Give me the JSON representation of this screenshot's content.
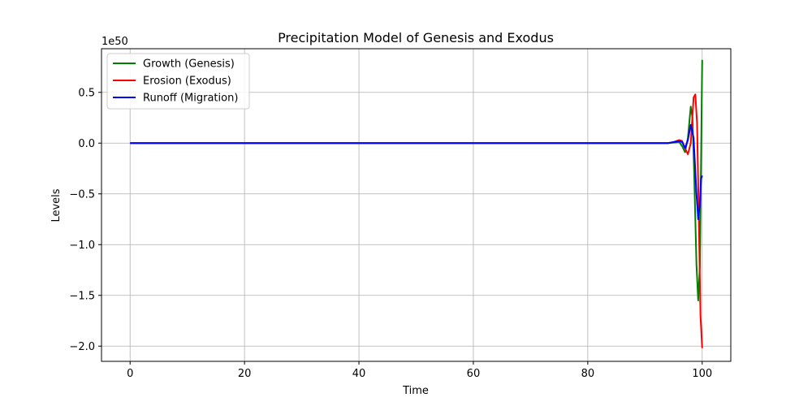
{
  "chart_data": {
    "type": "line",
    "title": "Precipitation Model of Genesis and Exodus",
    "xlabel": "Time",
    "ylabel": "Levels",
    "y_offset_label": "1e50",
    "xlim": [
      -5,
      105
    ],
    "ylim": [
      -2.15,
      0.93
    ],
    "x_ticks": [
      0,
      20,
      40,
      60,
      80,
      100
    ],
    "y_ticks": [
      0.5,
      0.0,
      -0.5,
      -1.0,
      -1.5,
      -2.0
    ],
    "x_tick_labels": [
      "0",
      "20",
      "40",
      "60",
      "80",
      "100"
    ],
    "y_tick_labels": [
      "0.5",
      "0.0",
      "−0.5",
      "−1.0",
      "−1.5",
      "−2.0"
    ],
    "grid": true,
    "legend_position": "upper-left",
    "series": [
      {
        "name": "Growth (Genesis)",
        "color": "#008000",
        "x": [
          0,
          90,
          94,
          95,
          96,
          96.5,
          97,
          97.5,
          98,
          98.3,
          98.6,
          99,
          99.3,
          99.6,
          100
        ],
        "y": [
          0,
          0,
          0,
          0.005,
          0.01,
          -0.03,
          -0.09,
          0.05,
          0.36,
          0.25,
          -0.3,
          -1.2,
          -1.55,
          -1.2,
          0.82
        ]
      },
      {
        "name": "Erosion (Exodus)",
        "color": "#ff0000",
        "x": [
          0,
          90,
          94,
          95,
          96,
          96.5,
          97,
          97.5,
          98,
          98.5,
          98.8,
          99.1,
          99.4,
          99.7,
          100
        ],
        "y": [
          0,
          0,
          0,
          0.01,
          0.03,
          0.02,
          -0.05,
          -0.11,
          0.0,
          0.45,
          0.48,
          0.2,
          -0.7,
          -1.7,
          -2.02
        ]
      },
      {
        "name": "Runoff (Migration)",
        "color": "#0000ff",
        "x": [
          0,
          90,
          94,
          95,
          96,
          96.5,
          97,
          97.5,
          98,
          98.5,
          99,
          99.3,
          99.6,
          99.8,
          100
        ],
        "y": [
          0,
          0,
          0,
          0.01,
          0.02,
          0.01,
          -0.05,
          0.03,
          0.18,
          0.05,
          -0.5,
          -0.75,
          -0.6,
          -0.35,
          -0.32
        ]
      }
    ]
  }
}
